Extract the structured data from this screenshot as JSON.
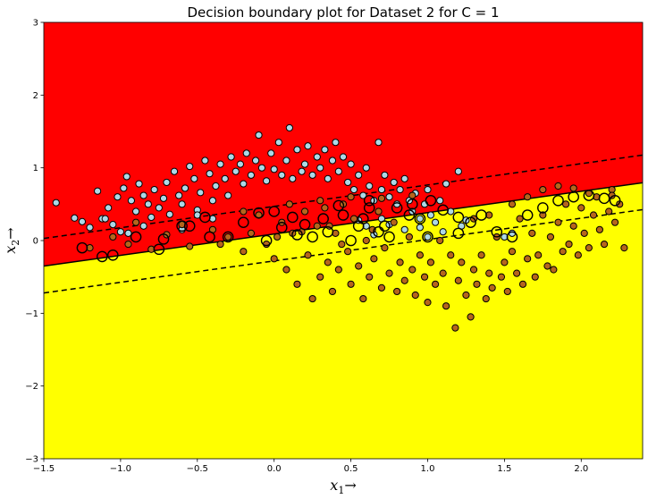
{
  "chart_data": {
    "type": "scatter",
    "title": "Decision boundary plot for Dataset 2 for C = 1",
    "xlabel": "x",
    "xlabel_sub": "1",
    "ylabel": "x",
    "ylabel_sub": "2",
    "label_arrow": "→",
    "xlim": [
      -1.5,
      2.4
    ],
    "ylim": [
      -3,
      3
    ],
    "xticks": [
      -1.5,
      -1.0,
      -0.5,
      0.0,
      0.5,
      1.0,
      1.5,
      2.0
    ],
    "xtick_labels": [
      "−1.5",
      "−1.0",
      "−0.5",
      "0.0",
      "0.5",
      "1.0",
      "1.5",
      "2.0"
    ],
    "yticks": [
      -3,
      -2,
      -1,
      0,
      1,
      2,
      3
    ],
    "ytick_labels": [
      "−3",
      "−2",
      "−1",
      "0",
      "1",
      "2",
      "3"
    ],
    "grid": false,
    "regions": {
      "upper_color": "#ff0000",
      "lower_color": "#ffff00"
    },
    "decision_boundary": {
      "slope": 0.2938,
      "intercept": 0.09,
      "color": "#000000",
      "style": "solid"
    },
    "margins": [
      {
        "slope": 0.2938,
        "intercept": 0.47,
        "color": "#000000",
        "style": "dashed"
      },
      {
        "slope": 0.2938,
        "intercept": -0.28,
        "color": "#000000",
        "style": "dashed"
      }
    ],
    "series": [
      {
        "color": "#add8e6",
        "edge": "#000000",
        "points": [
          [
            -1.42,
            0.52
          ],
          [
            -1.3,
            0.31
          ],
          [
            -1.25,
            0.26
          ],
          [
            -1.2,
            0.18
          ],
          [
            -1.15,
            0.68
          ],
          [
            -1.12,
            0.3
          ],
          [
            -1.08,
            0.45
          ],
          [
            -1.05,
            0.22
          ],
          [
            -1.02,
            0.6
          ],
          [
            -0.98,
            0.72
          ],
          [
            -0.96,
            0.88
          ],
          [
            -0.93,
            0.55
          ],
          [
            -0.9,
            0.4
          ],
          [
            -0.88,
            0.78
          ],
          [
            -0.85,
            0.62
          ],
          [
            -0.82,
            0.5
          ],
          [
            -0.8,
            0.32
          ],
          [
            -0.78,
            0.7
          ],
          [
            -0.75,
            0.45
          ],
          [
            -0.72,
            0.58
          ],
          [
            -0.7,
            0.8
          ],
          [
            -0.68,
            0.36
          ],
          [
            -0.65,
            0.95
          ],
          [
            -0.62,
            0.62
          ],
          [
            -0.6,
            0.5
          ],
          [
            -0.58,
            0.72
          ],
          [
            -0.55,
            1.02
          ],
          [
            -0.52,
            0.85
          ],
          [
            -0.5,
            0.42
          ],
          [
            -0.48,
            0.66
          ],
          [
            -0.45,
            1.1
          ],
          [
            -0.42,
            0.92
          ],
          [
            -0.4,
            0.55
          ],
          [
            -0.38,
            0.75
          ],
          [
            -0.35,
            1.05
          ],
          [
            -0.32,
            0.85
          ],
          [
            -0.3,
            0.62
          ],
          [
            -0.28,
            1.15
          ],
          [
            -0.25,
            0.95
          ],
          [
            -0.22,
            1.05
          ],
          [
            -0.2,
            0.78
          ],
          [
            -0.18,
            1.2
          ],
          [
            -0.15,
            0.9
          ],
          [
            -0.12,
            1.1
          ],
          [
            -0.1,
            1.45
          ],
          [
            -0.08,
            1.0
          ],
          [
            -0.05,
            0.82
          ],
          [
            -0.02,
            1.2
          ],
          [
            0.0,
            0.98
          ],
          [
            0.03,
            1.35
          ],
          [
            0.05,
            0.9
          ],
          [
            0.08,
            1.1
          ],
          [
            0.1,
            1.55
          ],
          [
            0.12,
            0.85
          ],
          [
            0.15,
            1.25
          ],
          [
            0.18,
            0.95
          ],
          [
            0.2,
            1.05
          ],
          [
            0.22,
            1.3
          ],
          [
            0.25,
            0.9
          ],
          [
            0.28,
            1.15
          ],
          [
            0.3,
            1.0
          ],
          [
            0.33,
            1.25
          ],
          [
            0.35,
            0.85
          ],
          [
            0.38,
            1.1
          ],
          [
            0.4,
            1.35
          ],
          [
            0.42,
            0.95
          ],
          [
            0.45,
            1.15
          ],
          [
            0.48,
            0.8
          ],
          [
            0.5,
            1.05
          ],
          [
            0.52,
            0.7
          ],
          [
            0.55,
            0.9
          ],
          [
            0.58,
            0.62
          ],
          [
            0.6,
            1.0
          ],
          [
            0.62,
            0.75
          ],
          [
            0.65,
            0.55
          ],
          [
            0.68,
            1.35
          ],
          [
            0.7,
            0.7
          ],
          [
            0.72,
            0.9
          ],
          [
            0.75,
            0.6
          ],
          [
            0.78,
            0.8
          ],
          [
            0.8,
            0.5
          ],
          [
            0.82,
            0.7
          ],
          [
            0.85,
            0.85
          ],
          [
            0.88,
            0.55
          ],
          [
            0.9,
            0.4
          ],
          [
            0.92,
            0.65
          ],
          [
            0.95,
            0.3
          ],
          [
            0.98,
            0.5
          ],
          [
            1.0,
            0.7
          ],
          [
            1.02,
            0.35
          ],
          [
            1.05,
            0.25
          ],
          [
            1.08,
            0.55
          ],
          [
            1.12,
            0.78
          ],
          [
            1.15,
            0.4
          ],
          [
            1.2,
            0.95
          ],
          [
            1.22,
            0.2
          ],
          [
            -1.1,
            0.3
          ],
          [
            -1.0,
            0.12
          ],
          [
            -0.85,
            0.2
          ],
          [
            -0.6,
            0.15
          ],
          [
            -0.4,
            0.3
          ],
          [
            0.6,
            0.2
          ],
          [
            0.65,
            0.08
          ],
          [
            0.75,
            0.22
          ],
          [
            0.85,
            0.15
          ],
          [
            1.0,
            0.05
          ],
          [
            1.1,
            0.12
          ],
          [
            1.25,
            0.28
          ],
          [
            1.5,
            0.05
          ],
          [
            1.55,
            0.1
          ],
          [
            0.55,
            0.28
          ],
          [
            0.7,
            0.3
          ],
          [
            0.95,
            0.18
          ],
          [
            -0.95,
            0.1
          ],
          [
            -0.5,
            0.35
          ]
        ]
      },
      {
        "color": "#b5651d",
        "edge": "#000000",
        "points": [
          [
            -1.2,
            -0.1
          ],
          [
            -1.05,
            0.05
          ],
          [
            -0.95,
            -0.05
          ],
          [
            -0.8,
            -0.12
          ],
          [
            -0.7,
            0.08
          ],
          [
            -0.55,
            -0.08
          ],
          [
            -0.4,
            0.15
          ],
          [
            -0.3,
            0.05
          ],
          [
            -0.2,
            -0.15
          ],
          [
            -0.1,
            0.35
          ],
          [
            -0.05,
            -0.05
          ],
          [
            0.0,
            -0.25
          ],
          [
            0.05,
            0.25
          ],
          [
            0.08,
            -0.4
          ],
          [
            0.12,
            0.1
          ],
          [
            0.15,
            -0.6
          ],
          [
            0.2,
            0.4
          ],
          [
            0.22,
            -0.2
          ],
          [
            0.25,
            -0.8
          ],
          [
            0.28,
            0.2
          ],
          [
            0.3,
            -0.5
          ],
          [
            0.33,
            0.45
          ],
          [
            0.35,
            -0.3
          ],
          [
            0.38,
            -0.7
          ],
          [
            0.4,
            0.1
          ],
          [
            0.42,
            -0.4
          ],
          [
            0.45,
            0.5
          ],
          [
            0.48,
            -0.15
          ],
          [
            0.5,
            -0.6
          ],
          [
            0.52,
            0.3
          ],
          [
            0.55,
            -0.35
          ],
          [
            0.58,
            -0.8
          ],
          [
            0.6,
            0.0
          ],
          [
            0.62,
            -0.5
          ],
          [
            0.65,
            -0.25
          ],
          [
            0.68,
            0.4
          ],
          [
            0.7,
            -0.65
          ],
          [
            0.72,
            -0.1
          ],
          [
            0.75,
            -0.45
          ],
          [
            0.78,
            0.25
          ],
          [
            0.8,
            -0.7
          ],
          [
            0.82,
            -0.3
          ],
          [
            0.85,
            -0.55
          ],
          [
            0.88,
            0.05
          ],
          [
            0.9,
            -0.4
          ],
          [
            0.92,
            -0.75
          ],
          [
            0.95,
            -0.2
          ],
          [
            0.98,
            -0.5
          ],
          [
            1.0,
            -0.85
          ],
          [
            1.02,
            -0.3
          ],
          [
            1.05,
            -0.6
          ],
          [
            1.08,
            0.0
          ],
          [
            1.1,
            -0.45
          ],
          [
            1.12,
            -0.9
          ],
          [
            1.15,
            -0.2
          ],
          [
            1.18,
            -1.2
          ],
          [
            1.2,
            -0.55
          ],
          [
            1.22,
            -0.3
          ],
          [
            1.25,
            -0.75
          ],
          [
            1.28,
            -1.05
          ],
          [
            1.3,
            -0.4
          ],
          [
            1.32,
            -0.6
          ],
          [
            1.35,
            -0.2
          ],
          [
            1.38,
            -0.8
          ],
          [
            1.4,
            -0.45
          ],
          [
            1.42,
            -0.65
          ],
          [
            1.45,
            0.05
          ],
          [
            1.48,
            -0.5
          ],
          [
            1.5,
            -0.3
          ],
          [
            1.52,
            -0.7
          ],
          [
            1.55,
            -0.15
          ],
          [
            1.58,
            -0.45
          ],
          [
            1.6,
            0.3
          ],
          [
            1.62,
            -0.6
          ],
          [
            1.65,
            -0.25
          ],
          [
            1.68,
            0.1
          ],
          [
            1.7,
            -0.5
          ],
          [
            1.72,
            -0.2
          ],
          [
            1.75,
            0.35
          ],
          [
            1.78,
            -0.35
          ],
          [
            1.8,
            0.05
          ],
          [
            1.82,
            -0.4
          ],
          [
            1.85,
            0.25
          ],
          [
            1.88,
            -0.15
          ],
          [
            1.9,
            0.5
          ],
          [
            1.92,
            -0.05
          ],
          [
            1.95,
            0.2
          ],
          [
            1.98,
            -0.2
          ],
          [
            2.0,
            0.45
          ],
          [
            2.02,
            0.1
          ],
          [
            2.05,
            -0.1
          ],
          [
            2.08,
            0.35
          ],
          [
            2.1,
            0.6
          ],
          [
            2.12,
            0.15
          ],
          [
            2.15,
            -0.05
          ],
          [
            2.18,
            0.4
          ],
          [
            2.2,
            0.7
          ],
          [
            2.22,
            0.25
          ],
          [
            2.25,
            0.5
          ],
          [
            2.28,
            -0.1
          ],
          [
            1.75,
            0.7
          ],
          [
            1.85,
            0.75
          ],
          [
            1.95,
            0.72
          ],
          [
            2.05,
            0.65
          ],
          [
            2.2,
            0.62
          ],
          [
            1.65,
            0.6
          ],
          [
            1.55,
            0.5
          ],
          [
            1.4,
            0.35
          ],
          [
            1.3,
            0.3
          ],
          [
            -0.9,
            0.25
          ],
          [
            -0.6,
            0.22
          ],
          [
            -0.2,
            0.4
          ],
          [
            0.1,
            0.5
          ],
          [
            0.3,
            0.55
          ],
          [
            0.5,
            0.6
          ],
          [
            0.7,
            0.58
          ],
          [
            0.9,
            0.62
          ],
          [
            -0.15,
            0.1
          ],
          [
            -0.35,
            -0.05
          ],
          [
            0.02,
            0.05
          ],
          [
            0.18,
            0.12
          ],
          [
            0.36,
            0.2
          ],
          [
            0.44,
            -0.05
          ],
          [
            0.64,
            0.15
          ]
        ]
      }
    ],
    "support_vectors": [
      [
        -1.12,
        -0.22
      ],
      [
        -1.05,
        -0.2
      ],
      [
        -0.75,
        -0.12
      ],
      [
        -0.72,
        0.02
      ],
      [
        -0.6,
        0.2
      ],
      [
        -0.45,
        0.32
      ],
      [
        -0.42,
        0.05
      ],
      [
        -0.2,
        0.25
      ],
      [
        -0.1,
        0.38
      ],
      [
        0.0,
        0.4
      ],
      [
        0.05,
        0.18
      ],
      [
        0.12,
        0.32
      ],
      [
        0.2,
        0.22
      ],
      [
        0.32,
        0.3
      ],
      [
        0.45,
        0.35
      ],
      [
        0.55,
        0.2
      ],
      [
        0.62,
        0.55
      ],
      [
        0.68,
        0.12
      ],
      [
        0.72,
        0.2
      ],
      [
        0.8,
        0.45
      ],
      [
        0.88,
        0.35
      ],
      [
        0.95,
        0.3
      ],
      [
        1.02,
        0.55
      ],
      [
        1.1,
        0.42
      ],
      [
        1.2,
        0.32
      ],
      [
        1.28,
        0.25
      ],
      [
        1.45,
        0.12
      ],
      [
        1.55,
        0.05
      ],
      [
        1.65,
        0.35
      ],
      [
        1.75,
        0.45
      ],
      [
        1.85,
        0.55
      ],
      [
        1.95,
        0.6
      ],
      [
        2.05,
        0.62
      ],
      [
        2.15,
        0.58
      ],
      [
        2.22,
        0.55
      ],
      [
        -0.3,
        0.05
      ],
      [
        -0.05,
        0.0
      ],
      [
        0.15,
        0.08
      ],
      [
        0.35,
        0.12
      ],
      [
        0.5,
        0.0
      ],
      [
        0.75,
        0.05
      ],
      [
        1.0,
        0.05
      ],
      [
        1.2,
        0.1
      ],
      [
        0.62,
        0.45
      ],
      [
        0.9,
        0.5
      ],
      [
        -0.9,
        0.05
      ],
      [
        -0.55,
        0.2
      ],
      [
        0.25,
        0.05
      ],
      [
        0.42,
        0.48
      ],
      [
        1.35,
        0.35
      ],
      [
        -1.25,
        -0.1
      ],
      [
        0.58,
        0.3
      ]
    ]
  }
}
